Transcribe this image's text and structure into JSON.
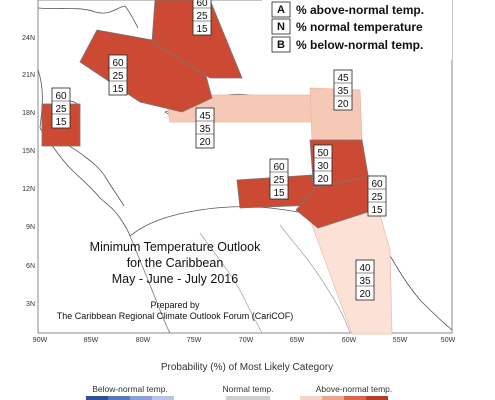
{
  "legend": {
    "items": [
      {
        "letter": "A",
        "text": "% above-normal temp."
      },
      {
        "letter": "N",
        "text": "% normal temperature"
      },
      {
        "letter": "B",
        "text": "% below-normal temp."
      }
    ]
  },
  "map": {
    "title_lines": [
      "Minimum Temperature Outlook",
      "for the Caribbean",
      "May - June - July 2016"
    ],
    "prepared_lines": [
      "Prepared by",
      "The Caribbean Regional Climate Outlook Forum (CariCOF)"
    ],
    "lat_labels": [
      "24N",
      "21N",
      "18N",
      "15N",
      "12N",
      "9N",
      "6N",
      "3N"
    ],
    "lon_labels": [
      "90W",
      "85W",
      "80W",
      "75W",
      "70W",
      "65W",
      "60W",
      "55W",
      "50W"
    ],
    "colors": {
      "strong": "#cc4a33",
      "light": "#f6c8b6",
      "very_light": "#fbe1d6",
      "outline": "#777777"
    },
    "regions": [
      {
        "name": "florida-bahamas",
        "probs": [
          "60",
          "25",
          "15"
        ]
      },
      {
        "name": "cuba-jamaica",
        "probs": [
          "60",
          "25",
          "15"
        ]
      },
      {
        "name": "belize",
        "probs": [
          "60",
          "25",
          "15"
        ]
      },
      {
        "name": "hispaniola-puerto-rico",
        "probs": [
          "45",
          "35",
          "20"
        ]
      },
      {
        "name": "northern-lesser-antilles",
        "probs": [
          "45",
          "35",
          "20"
        ]
      },
      {
        "name": "windward-islands",
        "probs": [
          "50",
          "30",
          "20"
        ]
      },
      {
        "name": "abc-islands",
        "probs": [
          "60",
          "25",
          "15"
        ]
      },
      {
        "name": "trinidad-guyana",
        "probs": [
          "60",
          "25",
          "15"
        ]
      },
      {
        "name": "guianas",
        "probs": [
          "40",
          "35",
          "20"
        ]
      }
    ]
  },
  "scale": {
    "title": "Probability (%) of Most Likely Category",
    "labels": [
      "Below-normal temp.",
      "Normal temp.",
      "Above-normal temp."
    ]
  }
}
